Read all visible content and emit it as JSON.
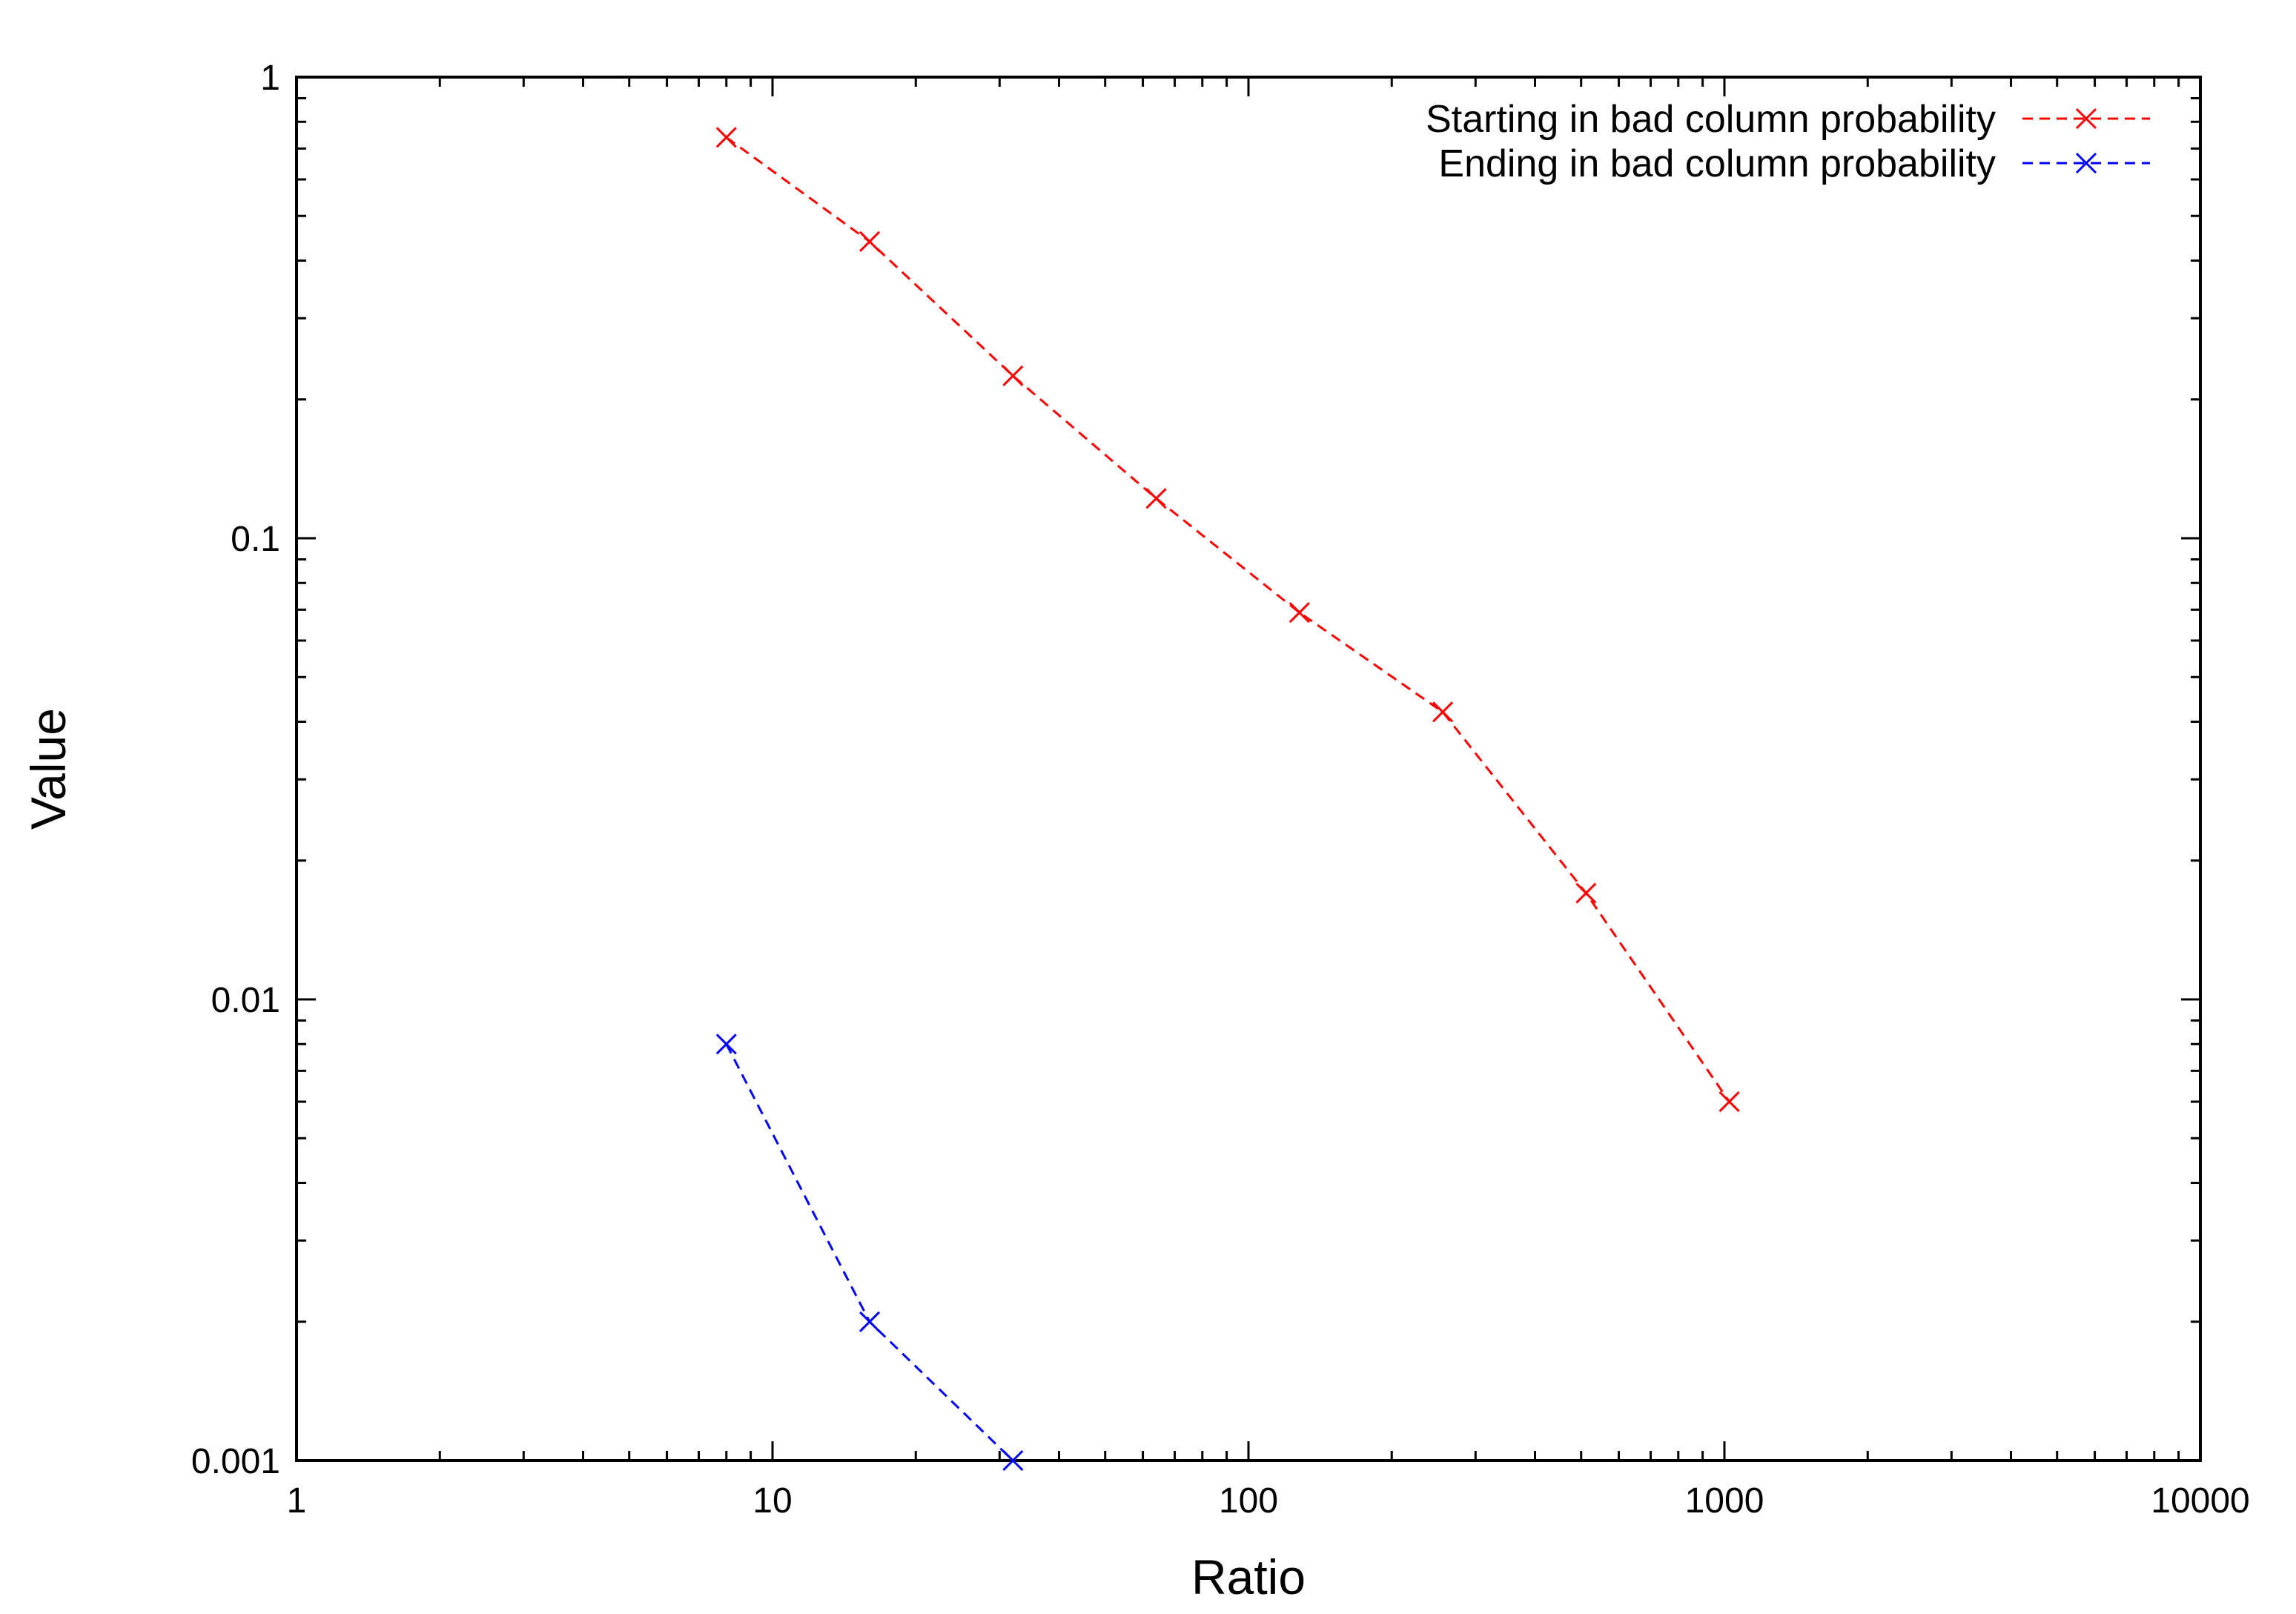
{
  "chart_data": {
    "type": "line",
    "title": "",
    "xlabel": "Ratio",
    "ylabel": "Value",
    "xscale": "log",
    "yscale": "log",
    "xlim": [
      1,
      10000
    ],
    "ylim": [
      0.001,
      1
    ],
    "x_ticks": [
      1,
      10,
      100,
      1000,
      10000
    ],
    "x_tick_labels": [
      "1",
      "10",
      "100",
      "1000",
      "10000"
    ],
    "y_ticks": [
      0.001,
      0.01,
      0.1,
      1
    ],
    "y_tick_labels": [
      "0.001",
      "0.01",
      "0.1",
      "1"
    ],
    "grid": false,
    "legend_position": "top-right",
    "series": [
      {
        "name": "Starting in bad column probability",
        "color": "#ff0000",
        "line_style": "dashed",
        "marker": "x",
        "x": [
          8,
          16,
          32,
          64,
          128,
          256,
          512,
          1024
        ],
        "y": [
          0.74,
          0.44,
          0.225,
          0.122,
          0.069,
          0.042,
          0.017,
          0.006
        ]
      },
      {
        "name": "Ending in bad column probability",
        "color": "#0000ff",
        "line_style": "dashed",
        "marker": "x",
        "x": [
          8,
          16,
          32
        ],
        "y": [
          0.008,
          0.002,
          0.001
        ]
      }
    ]
  }
}
